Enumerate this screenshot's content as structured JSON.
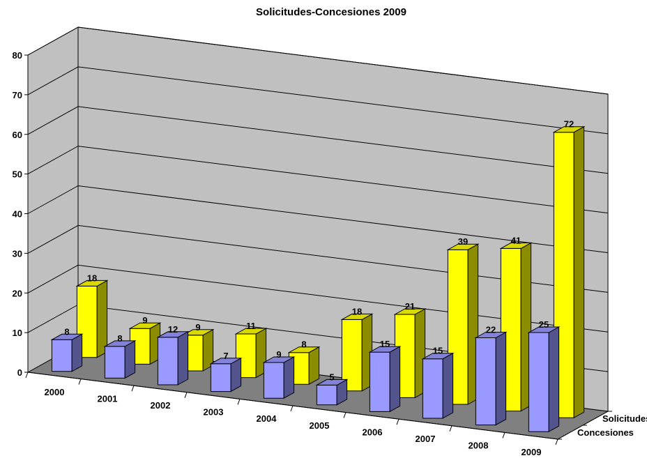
{
  "chart_data": {
    "type": "bar",
    "title": "Solicitudes-Concesiones 2009",
    "categories": [
      "2000",
      "2001",
      "2002",
      "2003",
      "2004",
      "2005",
      "2006",
      "2007",
      "2008",
      "2009"
    ],
    "series": [
      {
        "name": "Concesiones",
        "values": [
          8,
          8,
          12,
          7,
          9,
          5,
          15,
          15,
          22,
          25
        ],
        "color": "#9999FF"
      },
      {
        "name": "Solicitudes",
        "values": [
          18,
          9,
          9,
          11,
          8,
          18,
          21,
          39,
          41,
          72
        ],
        "color": "#FFFF00"
      }
    ],
    "ylim": [
      0,
      80
    ],
    "yticks": [
      0,
      10,
      20,
      30,
      40,
      50,
      60,
      70,
      80
    ],
    "grid": true,
    "wall_color": "#C0C0C0",
    "floor_color": "#808080"
  }
}
